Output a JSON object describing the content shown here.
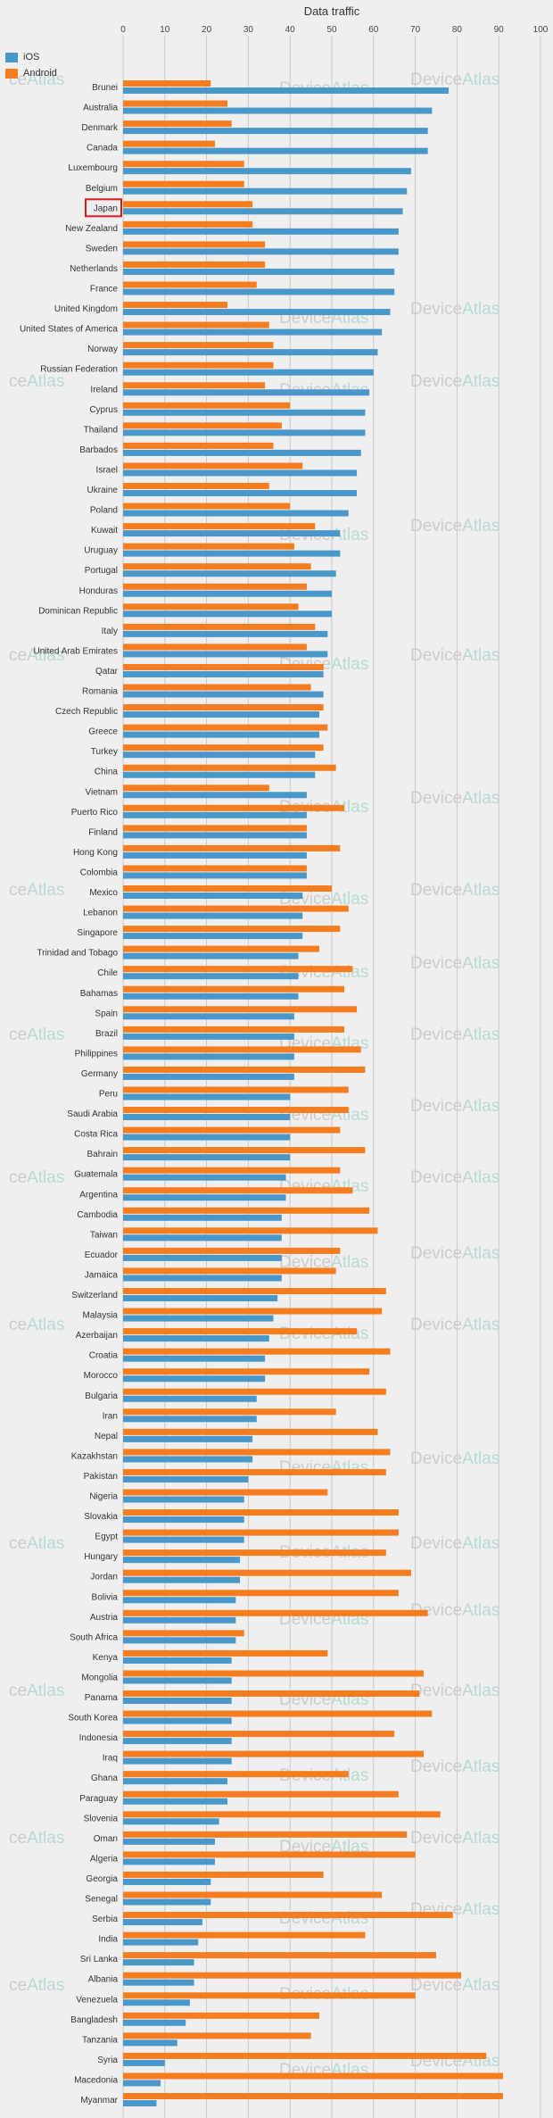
{
  "colors": {
    "ios": "#4a98c9",
    "android": "#f57c1f",
    "grid": "#c9c9c9",
    "highlight": "#e0161c"
  },
  "watermark": {
    "brand_gray": "Device",
    "brand_teal": "Atlas",
    "partial": "ce"
  },
  "chart_data": {
    "type": "bar",
    "orientation": "horizontal",
    "title": "Data traffic",
    "xlim": [
      0,
      100
    ],
    "x_ticks": [
      "0",
      "10",
      "20",
      "30",
      "40",
      "50",
      "60",
      "70",
      "80",
      "90",
      "100"
    ],
    "grid": true,
    "legend_position": "top-left",
    "highlighted_category": "Japan",
    "categories": [
      "Brunei",
      "Australia",
      "Denmark",
      "Canada",
      "Luxembourg",
      "Belgium",
      "Japan",
      "New Zealand",
      "Sweden",
      "Netherlands",
      "France",
      "United Kingdom",
      "United States of America",
      "Norway",
      "Russian Federation",
      "Ireland",
      "Cyprus",
      "Thailand",
      "Barbados",
      "Israel",
      "Ukraine",
      "Poland",
      "Kuwait",
      "Uruguay",
      "Portugal",
      "Honduras",
      "Dominican Republic",
      "Italy",
      "United Arab Emirates",
      "Qatar",
      "Romania",
      "Czech Republic",
      "Greece",
      "Turkey",
      "China",
      "Vietnam",
      "Puerto Rico",
      "Finland",
      "Hong Kong",
      "Colombia",
      "Mexico",
      "Lebanon",
      "Singapore",
      "Trinidad and Tobago",
      "Chile",
      "Bahamas",
      "Spain",
      "Brazil",
      "Philippines",
      "Germany",
      "Peru",
      "Saudi Arabia",
      "Costa Rica",
      "Bahrain",
      "Guatemala",
      "Argentina",
      "Cambodia",
      "Taiwan",
      "Ecuador",
      "Jamaica",
      "Switzerland",
      "Malaysia",
      "Azerbaijan",
      "Croatia",
      "Morocco",
      "Bulgaria",
      "Iran",
      "Nepal",
      "Kazakhstan",
      "Pakistan",
      "Nigeria",
      "Slovakia",
      "Egypt",
      "Hungary",
      "Jordan",
      "Bolivia",
      "Austria",
      "South Africa",
      "Kenya",
      "Mongolia",
      "Panama",
      "South Korea",
      "Indonesia",
      "Iraq",
      "Ghana",
      "Paraguay",
      "Slovenia",
      "Oman",
      "Algeria",
      "Georgia",
      "Senegal",
      "Serbia",
      "India",
      "Sri Lanka",
      "Albania",
      "Venezuela",
      "Bangladesh",
      "Tanzania",
      "Syria",
      "Macedonia",
      "Myanmar"
    ],
    "series": [
      {
        "name": "iOS",
        "values": [
          78,
          74,
          73,
          73,
          69,
          68,
          67,
          66,
          66,
          65,
          65,
          64,
          62,
          61,
          60,
          59,
          58,
          58,
          57,
          56,
          56,
          54,
          52,
          52,
          51,
          50,
          50,
          49,
          49,
          48,
          48,
          47,
          47,
          46,
          46,
          44,
          44,
          44,
          44,
          44,
          43,
          43,
          43,
          42,
          42,
          42,
          41,
          41,
          41,
          41,
          40,
          40,
          40,
          40,
          39,
          39,
          38,
          38,
          38,
          38,
          37,
          36,
          35,
          34,
          34,
          32,
          32,
          31,
          31,
          30,
          29,
          29,
          29,
          28,
          28,
          27,
          27,
          27,
          26,
          26,
          26,
          26,
          26,
          26,
          25,
          25,
          23,
          22,
          22,
          21,
          21,
          19,
          18,
          17,
          17,
          16,
          15,
          13,
          10,
          9,
          8
        ]
      },
      {
        "name": "Android",
        "values": [
          21,
          25,
          26,
          22,
          29,
          29,
          31,
          31,
          34,
          34,
          32,
          25,
          35,
          36,
          36,
          34,
          40,
          38,
          36,
          43,
          35,
          40,
          46,
          41,
          45,
          44,
          42,
          46,
          44,
          48,
          45,
          48,
          49,
          48,
          51,
          35,
          53,
          44,
          52,
          44,
          50,
          54,
          52,
          47,
          55,
          53,
          56,
          53,
          57,
          58,
          54,
          54,
          52,
          58,
          52,
          55,
          59,
          61,
          52,
          51,
          63,
          62,
          56,
          64,
          59,
          63,
          51,
          61,
          64,
          63,
          49,
          66,
          66,
          63,
          69,
          66,
          73,
          29,
          49,
          72,
          71,
          74,
          65,
          72,
          54,
          66,
          76,
          68,
          70,
          48,
          62,
          79,
          58,
          75,
          81,
          70,
          47,
          45,
          87,
          91,
          91
        ]
      }
    ]
  }
}
